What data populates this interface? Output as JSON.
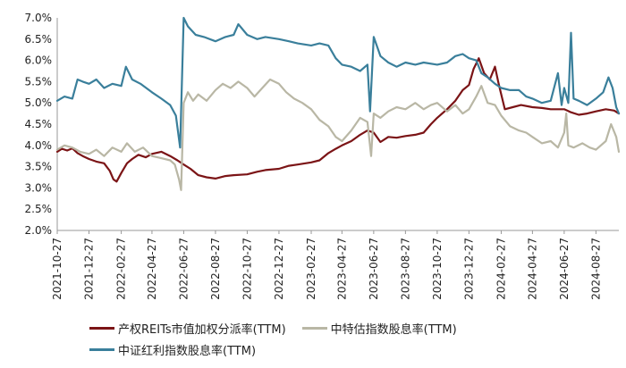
{
  "chart_data": {
    "type": "line",
    "title": "",
    "xlabel": "",
    "ylabel": "",
    "x_ticks": [
      "2021-10-27",
      "2021-12-27",
      "2022-02-27",
      "2022-04-27",
      "2022-06-27",
      "2022-08-27",
      "2022-10-27",
      "2022-12-27",
      "2023-02-27",
      "2023-04-27",
      "2023-06-27",
      "2023-08-27",
      "2023-10-27",
      "2023-12-27",
      "2024-02-27",
      "2024-04-27",
      "2024-06-27",
      "2024-08-27"
    ],
    "x_range": [
      "2021-10-27",
      "2024-10-10"
    ],
    "y_ticks": [
      "2.0%",
      "2.5%",
      "3.0%",
      "3.5%",
      "4.0%",
      "4.5%",
      "5.0%",
      "5.5%",
      "6.0%",
      "6.5%",
      "7.0%"
    ],
    "ylim": [
      2.0,
      7.0
    ],
    "y_unit": "%",
    "grid": false,
    "legend_position": "bottom",
    "series": [
      {
        "name": "产权REITs市值加权分派率(TTM)",
        "color": "#7b1416",
        "points": [
          [
            "2021-10-27",
            3.85
          ],
          [
            "2021-11-05",
            3.92
          ],
          [
            "2021-11-15",
            3.88
          ],
          [
            "2021-11-25",
            3.93
          ],
          [
            "2021-12-05",
            3.82
          ],
          [
            "2021-12-15",
            3.75
          ],
          [
            "2021-12-27",
            3.68
          ],
          [
            "2022-01-10",
            3.62
          ],
          [
            "2022-01-25",
            3.58
          ],
          [
            "2022-02-05",
            3.4
          ],
          [
            "2022-02-12",
            3.2
          ],
          [
            "2022-02-18",
            3.15
          ],
          [
            "2022-02-27",
            3.35
          ],
          [
            "2022-03-10",
            3.58
          ],
          [
            "2022-03-20",
            3.68
          ],
          [
            "2022-04-01",
            3.78
          ],
          [
            "2022-04-15",
            3.72
          ],
          [
            "2022-04-27",
            3.8
          ],
          [
            "2022-05-15",
            3.85
          ],
          [
            "2022-06-01",
            3.75
          ],
          [
            "2022-06-15",
            3.65
          ],
          [
            "2022-06-27",
            3.55
          ],
          [
            "2022-07-10",
            3.45
          ],
          [
            "2022-07-25",
            3.3
          ],
          [
            "2022-08-10",
            3.25
          ],
          [
            "2022-08-27",
            3.22
          ],
          [
            "2022-09-15",
            3.28
          ],
          [
            "2022-10-01",
            3.3
          ],
          [
            "2022-10-27",
            3.32
          ],
          [
            "2022-11-15",
            3.38
          ],
          [
            "2022-12-01",
            3.42
          ],
          [
            "2022-12-27",
            3.45
          ],
          [
            "2023-01-15",
            3.52
          ],
          [
            "2023-02-01",
            3.55
          ],
          [
            "2023-02-27",
            3.6
          ],
          [
            "2023-03-15",
            3.65
          ],
          [
            "2023-04-01",
            3.82
          ],
          [
            "2023-04-15",
            3.92
          ],
          [
            "2023-04-27",
            4.0
          ],
          [
            "2023-05-15",
            4.1
          ],
          [
            "2023-06-01",
            4.25
          ],
          [
            "2023-06-15",
            4.35
          ],
          [
            "2023-06-27",
            4.3
          ],
          [
            "2023-07-10",
            4.08
          ],
          [
            "2023-07-25",
            4.2
          ],
          [
            "2023-08-10",
            4.18
          ],
          [
            "2023-08-27",
            4.22
          ],
          [
            "2023-09-15",
            4.25
          ],
          [
            "2023-10-01",
            4.3
          ],
          [
            "2023-10-15",
            4.5
          ],
          [
            "2023-10-27",
            4.65
          ],
          [
            "2023-11-15",
            4.85
          ],
          [
            "2023-12-01",
            5.05
          ],
          [
            "2023-12-15",
            5.3
          ],
          [
            "2023-12-27",
            5.42
          ],
          [
            "2024-01-05",
            5.8
          ],
          [
            "2024-01-15",
            6.05
          ],
          [
            "2024-01-25",
            5.7
          ],
          [
            "2024-02-05",
            5.55
          ],
          [
            "2024-02-15",
            5.85
          ],
          [
            "2024-02-22",
            5.45
          ],
          [
            "2024-02-27",
            5.2
          ],
          [
            "2024-03-05",
            4.85
          ],
          [
            "2024-03-20",
            4.9
          ],
          [
            "2024-04-05",
            4.95
          ],
          [
            "2024-04-27",
            4.9
          ],
          [
            "2024-05-15",
            4.88
          ],
          [
            "2024-06-01",
            4.85
          ],
          [
            "2024-06-15",
            4.85
          ],
          [
            "2024-06-27",
            4.85
          ],
          [
            "2024-07-10",
            4.78
          ],
          [
            "2024-07-25",
            4.72
          ],
          [
            "2024-08-10",
            4.75
          ],
          [
            "2024-08-27",
            4.8
          ],
          [
            "2024-09-15",
            4.85
          ],
          [
            "2024-10-01",
            4.82
          ],
          [
            "2024-10-10",
            4.75
          ]
        ]
      },
      {
        "name": "中特估指数股息率(TTM)",
        "color": "#b9b7a5",
        "points": [
          [
            "2021-10-27",
            3.9
          ],
          [
            "2021-11-10",
            4.0
          ],
          [
            "2021-11-25",
            3.95
          ],
          [
            "2021-12-10",
            3.85
          ],
          [
            "2021-12-27",
            3.8
          ],
          [
            "2022-01-10",
            3.9
          ],
          [
            "2022-01-25",
            3.75
          ],
          [
            "2022-02-10",
            3.95
          ],
          [
            "2022-02-27",
            3.85
          ],
          [
            "2022-03-10",
            4.05
          ],
          [
            "2022-03-25",
            3.85
          ],
          [
            "2022-04-10",
            3.95
          ],
          [
            "2022-04-27",
            3.75
          ],
          [
            "2022-05-15",
            3.7
          ],
          [
            "2022-06-01",
            3.65
          ],
          [
            "2022-06-10",
            3.55
          ],
          [
            "2022-06-18",
            3.2
          ],
          [
            "2022-06-22",
            2.95
          ],
          [
            "2022-06-27",
            5.0
          ],
          [
            "2022-07-05",
            5.25
          ],
          [
            "2022-07-15",
            5.05
          ],
          [
            "2022-07-25",
            5.2
          ],
          [
            "2022-08-10",
            5.05
          ],
          [
            "2022-08-27",
            5.3
          ],
          [
            "2022-09-10",
            5.45
          ],
          [
            "2022-09-25",
            5.35
          ],
          [
            "2022-10-10",
            5.5
          ],
          [
            "2022-10-27",
            5.35
          ],
          [
            "2022-11-10",
            5.15
          ],
          [
            "2022-11-25",
            5.35
          ],
          [
            "2022-12-10",
            5.55
          ],
          [
            "2022-12-27",
            5.45
          ],
          [
            "2023-01-10",
            5.25
          ],
          [
            "2023-01-25",
            5.1
          ],
          [
            "2023-02-10",
            5.0
          ],
          [
            "2023-02-27",
            4.85
          ],
          [
            "2023-03-15",
            4.6
          ],
          [
            "2023-04-01",
            4.45
          ],
          [
            "2023-04-15",
            4.2
          ],
          [
            "2023-04-27",
            4.1
          ],
          [
            "2023-05-15",
            4.35
          ],
          [
            "2023-06-01",
            4.65
          ],
          [
            "2023-06-15",
            4.55
          ],
          [
            "2023-06-22",
            3.75
          ],
          [
            "2023-06-27",
            4.75
          ],
          [
            "2023-07-10",
            4.65
          ],
          [
            "2023-07-25",
            4.8
          ],
          [
            "2023-08-10",
            4.9
          ],
          [
            "2023-08-27",
            4.85
          ],
          [
            "2023-09-15",
            5.0
          ],
          [
            "2023-10-01",
            4.85
          ],
          [
            "2023-10-15",
            4.95
          ],
          [
            "2023-10-27",
            5.0
          ],
          [
            "2023-11-15",
            4.8
          ],
          [
            "2023-12-01",
            4.95
          ],
          [
            "2023-12-15",
            4.75
          ],
          [
            "2023-12-27",
            4.85
          ],
          [
            "2024-01-10",
            5.15
          ],
          [
            "2024-01-20",
            5.4
          ],
          [
            "2024-02-01",
            5.0
          ],
          [
            "2024-02-15",
            4.95
          ],
          [
            "2024-02-27",
            4.7
          ],
          [
            "2024-03-15",
            4.45
          ],
          [
            "2024-04-01",
            4.35
          ],
          [
            "2024-04-15",
            4.3
          ],
          [
            "2024-04-27",
            4.2
          ],
          [
            "2024-05-15",
            4.05
          ],
          [
            "2024-06-01",
            4.1
          ],
          [
            "2024-06-15",
            3.95
          ],
          [
            "2024-06-27",
            4.3
          ],
          [
            "2024-07-01",
            4.75
          ],
          [
            "2024-07-05",
            4.0
          ],
          [
            "2024-07-15",
            3.95
          ],
          [
            "2024-08-01",
            4.05
          ],
          [
            "2024-08-15",
            3.95
          ],
          [
            "2024-08-27",
            3.9
          ],
          [
            "2024-09-15",
            4.1
          ],
          [
            "2024-09-25",
            4.5
          ],
          [
            "2024-10-05",
            4.2
          ],
          [
            "2024-10-10",
            3.85
          ]
        ]
      },
      {
        "name": "中证红利指数股息率(TTM)",
        "color": "#3a7f9b",
        "points": [
          [
            "2021-10-27",
            5.05
          ],
          [
            "2021-11-10",
            5.15
          ],
          [
            "2021-11-25",
            5.1
          ],
          [
            "2021-12-05",
            5.55
          ],
          [
            "2021-12-15",
            5.5
          ],
          [
            "2021-12-27",
            5.45
          ],
          [
            "2022-01-10",
            5.55
          ],
          [
            "2022-01-25",
            5.35
          ],
          [
            "2022-02-10",
            5.45
          ],
          [
            "2022-02-27",
            5.4
          ],
          [
            "2022-03-08",
            5.85
          ],
          [
            "2022-03-20",
            5.55
          ],
          [
            "2022-04-05",
            5.45
          ],
          [
            "2022-04-27",
            5.25
          ],
          [
            "2022-05-15",
            5.1
          ],
          [
            "2022-06-01",
            4.95
          ],
          [
            "2022-06-12",
            4.7
          ],
          [
            "2022-06-20",
            3.95
          ],
          [
            "2022-06-27",
            7.0
          ],
          [
            "2022-07-05",
            6.8
          ],
          [
            "2022-07-20",
            6.6
          ],
          [
            "2022-08-05",
            6.55
          ],
          [
            "2022-08-27",
            6.45
          ],
          [
            "2022-09-15",
            6.55
          ],
          [
            "2022-10-01",
            6.6
          ],
          [
            "2022-10-10",
            6.85
          ],
          [
            "2022-10-27",
            6.6
          ],
          [
            "2022-11-15",
            6.5
          ],
          [
            "2022-12-01",
            6.55
          ],
          [
            "2022-12-27",
            6.5
          ],
          [
            "2023-01-15",
            6.45
          ],
          [
            "2023-02-01",
            6.4
          ],
          [
            "2023-02-27",
            6.35
          ],
          [
            "2023-03-15",
            6.4
          ],
          [
            "2023-04-01",
            6.35
          ],
          [
            "2023-04-15",
            6.05
          ],
          [
            "2023-04-27",
            5.9
          ],
          [
            "2023-05-15",
            5.85
          ],
          [
            "2023-06-01",
            5.75
          ],
          [
            "2023-06-15",
            5.9
          ],
          [
            "2023-06-20",
            4.8
          ],
          [
            "2023-06-27",
            6.55
          ],
          [
            "2023-07-10",
            6.1
          ],
          [
            "2023-07-25",
            5.95
          ],
          [
            "2023-08-10",
            5.85
          ],
          [
            "2023-08-27",
            5.95
          ],
          [
            "2023-09-15",
            5.9
          ],
          [
            "2023-10-01",
            5.95
          ],
          [
            "2023-10-27",
            5.9
          ],
          [
            "2023-11-15",
            5.95
          ],
          [
            "2023-12-01",
            6.1
          ],
          [
            "2023-12-15",
            6.15
          ],
          [
            "2023-12-27",
            6.05
          ],
          [
            "2024-01-10",
            6.0
          ],
          [
            "2024-01-20",
            5.7
          ],
          [
            "2024-02-01",
            5.6
          ],
          [
            "2024-02-15",
            5.45
          ],
          [
            "2024-02-27",
            5.35
          ],
          [
            "2024-03-15",
            5.3
          ],
          [
            "2024-04-01",
            5.3
          ],
          [
            "2024-04-15",
            5.15
          ],
          [
            "2024-04-27",
            5.1
          ],
          [
            "2024-05-15",
            5.0
          ],
          [
            "2024-06-01",
            5.05
          ],
          [
            "2024-06-15",
            5.7
          ],
          [
            "2024-06-22",
            4.95
          ],
          [
            "2024-06-27",
            5.35
          ],
          [
            "2024-07-05",
            5.0
          ],
          [
            "2024-07-10",
            6.65
          ],
          [
            "2024-07-15",
            5.1
          ],
          [
            "2024-07-25",
            5.05
          ],
          [
            "2024-08-10",
            4.95
          ],
          [
            "2024-08-27",
            5.1
          ],
          [
            "2024-09-10",
            5.25
          ],
          [
            "2024-09-20",
            5.6
          ],
          [
            "2024-09-28",
            5.35
          ],
          [
            "2024-10-05",
            4.9
          ],
          [
            "2024-10-10",
            4.75
          ]
        ]
      }
    ]
  }
}
